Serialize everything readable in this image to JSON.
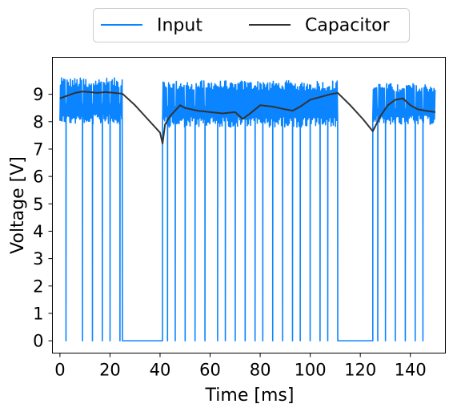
{
  "chart_data": {
    "type": "line",
    "xlabel": "Time [ms]",
    "ylabel": "Voltage [V]",
    "xlim": [
      -3,
      154
    ],
    "ylim": [
      -0.45,
      10.35
    ],
    "xticks": [
      0,
      20,
      40,
      60,
      80,
      100,
      120,
      140
    ],
    "yticks": [
      0,
      1,
      2,
      3,
      4,
      5,
      6,
      7,
      8,
      9
    ],
    "grid": false,
    "legend_position": "top-center",
    "series": [
      {
        "name": "Input",
        "color": "#0a84ff",
        "style": "pulsing rectified supply with dropouts to 0 V",
        "active_segments": [
          {
            "start": 0,
            "end": 25,
            "low": 7.9,
            "high": 9.6
          },
          {
            "start": 41,
            "end": 111,
            "low": 7.8,
            "high": 9.5
          },
          {
            "start": 125,
            "end": 150,
            "low": 7.9,
            "high": 9.4
          }
        ],
        "off_segments": [
          {
            "start": 25,
            "end": 41,
            "value": 0
          },
          {
            "start": 111,
            "end": 125,
            "value": 0
          }
        ],
        "dropouts_ms": [
          2.5,
          9,
          13,
          17,
          20,
          24,
          43,
          46,
          50,
          54,
          58,
          63,
          66,
          70,
          74,
          78,
          81,
          85,
          89,
          93,
          96,
          100,
          104,
          107,
          127,
          130,
          134,
          138,
          142,
          145
        ]
      },
      {
        "name": "Capacitor",
        "color": "#333333",
        "x": [
          0,
          3,
          6,
          9,
          12,
          15,
          18,
          21,
          25,
          30,
          35,
          40,
          41,
          42,
          44,
          46,
          48,
          50,
          55,
          60,
          65,
          70,
          73,
          76,
          80,
          85,
          90,
          93,
          96,
          100,
          104,
          108,
          111,
          116,
          121,
          125,
          128,
          131,
          134,
          137,
          140,
          143,
          146,
          150
        ],
        "values": [
          8.85,
          8.95,
          9.05,
          9.1,
          9.08,
          9.05,
          9.08,
          9.06,
          9.02,
          8.6,
          8.1,
          7.6,
          7.2,
          7.9,
          8.2,
          8.4,
          8.6,
          8.5,
          8.4,
          8.35,
          8.3,
          8.35,
          8.1,
          8.3,
          8.6,
          8.55,
          8.45,
          8.4,
          8.55,
          8.8,
          8.9,
          9.0,
          9.05,
          8.6,
          8.1,
          7.65,
          8.2,
          8.6,
          8.8,
          8.85,
          8.6,
          8.45,
          8.4,
          8.35
        ]
      }
    ]
  }
}
